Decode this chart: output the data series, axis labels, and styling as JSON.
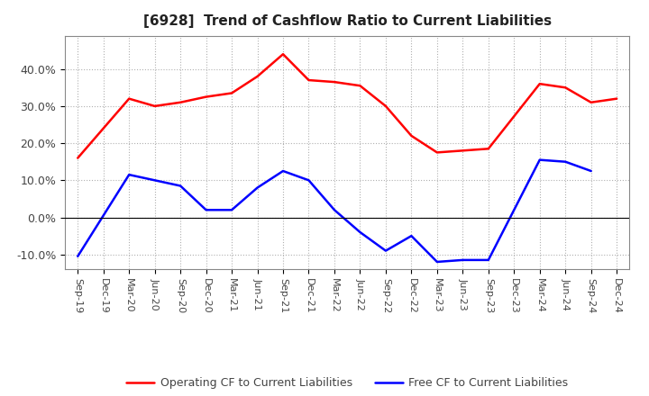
{
  "title": "[6928]  Trend of Cashflow Ratio to Current Liabilities",
  "x_labels": [
    "Sep-19",
    "Dec-19",
    "Mar-20",
    "Jun-20",
    "Sep-20",
    "Dec-20",
    "Mar-21",
    "Jun-21",
    "Sep-21",
    "Dec-21",
    "Mar-22",
    "Jun-22",
    "Sep-22",
    "Dec-22",
    "Mar-23",
    "Jun-23",
    "Sep-23",
    "Dec-23",
    "Mar-24",
    "Jun-24",
    "Sep-24",
    "Dec-24"
  ],
  "operating_cf": [
    0.16,
    null,
    0.32,
    0.3,
    0.31,
    0.325,
    0.335,
    0.38,
    0.44,
    0.37,
    0.365,
    0.355,
    0.3,
    0.22,
    0.175,
    0.18,
    0.185,
    null,
    0.36,
    0.35,
    0.31,
    0.32
  ],
  "free_cf": [
    -0.105,
    null,
    0.115,
    0.1,
    0.085,
    0.02,
    0.02,
    0.08,
    0.125,
    0.1,
    0.02,
    -0.04,
    -0.09,
    -0.05,
    -0.12,
    -0.115,
    -0.115,
    null,
    0.155,
    0.15,
    0.125,
    null
  ],
  "ylim": [
    -0.14,
    0.49
  ],
  "yticks": [
    -0.1,
    0.0,
    0.1,
    0.2,
    0.3,
    0.4
  ],
  "operating_color": "#ff0000",
  "free_color": "#0000ff",
  "background_color": "#ffffff",
  "plot_bg_color": "#ffffff",
  "grid_color": "#b0b0b0",
  "legend_labels": [
    "Operating CF to Current Liabilities",
    "Free CF to Current Liabilities"
  ]
}
